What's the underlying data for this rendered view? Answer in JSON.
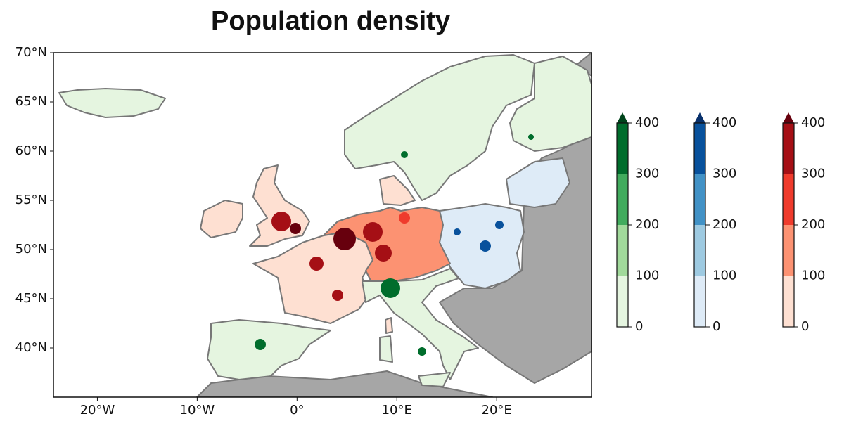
{
  "chart_data": {
    "type": "map",
    "title": "Population density",
    "xlim": [
      -24.4,
      29.5
    ],
    "ylim": [
      35,
      70
    ],
    "xticks": [
      {
        "value": -20,
        "label": "20°W"
      },
      {
        "value": -10,
        "label": "10°W"
      },
      {
        "value": 0,
        "label": "0°"
      },
      {
        "value": 10,
        "label": "10°E"
      },
      {
        "value": 20,
        "label": "20°E"
      }
    ],
    "yticks": [
      {
        "value": 40,
        "label": "40°N"
      },
      {
        "value": 45,
        "label": "45°N"
      },
      {
        "value": 50,
        "label": "50°N"
      },
      {
        "value": 55,
        "label": "55°N"
      },
      {
        "value": 60,
        "label": "60°N"
      },
      {
        "value": 65,
        "label": "65°N"
      },
      {
        "value": 70,
        "label": "70°N"
      }
    ],
    "colorbars": [
      {
        "levels": [
          0,
          100,
          200,
          300,
          400
        ],
        "colors": [
          "#e5f5e0",
          "#a1d99b",
          "#41ab5d",
          "#006d2c",
          "#00441b"
        ],
        "extend": "max"
      },
      {
        "levels": [
          0,
          100,
          200,
          300,
          400
        ],
        "colors": [
          "#deebf7",
          "#9ecae1",
          "#4292c6",
          "#08519c",
          "#08306b"
        ],
        "extend": "max"
      },
      {
        "levels": [
          0,
          100,
          200,
          300,
          400
        ],
        "colors": [
          "#fee0d2",
          "#fc9272",
          "#ef3b2c",
          "#a50f15",
          "#67000d"
        ],
        "extend": "max"
      }
    ]
  }
}
